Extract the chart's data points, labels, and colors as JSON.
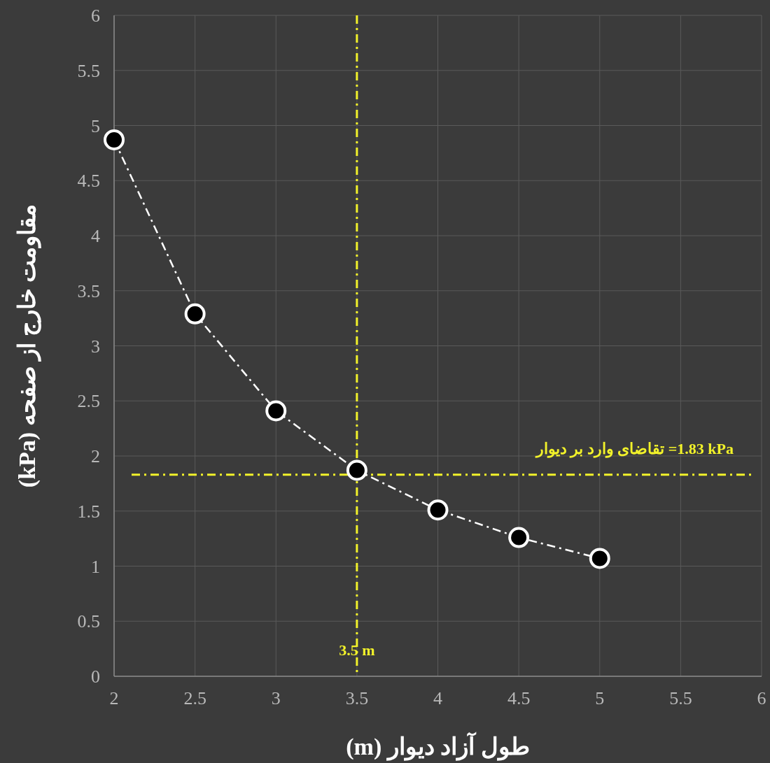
{
  "chart_data": {
    "type": "line",
    "xlabel": "طول آزاد دیوار (m)",
    "ylabel": "مقاومت خارج از صفحه (kPa)",
    "x": [
      2,
      2.5,
      3,
      3.5,
      4,
      4.5,
      5
    ],
    "series": [
      {
        "color": "#ffffff",
        "values": [
          4.87,
          3.29,
          2.41,
          1.87,
          1.51,
          1.26,
          1.07
        ]
      }
    ],
    "xlim": [
      2,
      6
    ],
    "xticks": [
      2,
      2.5,
      3,
      3.5,
      4,
      4.5,
      5,
      5.5,
      6
    ],
    "ylim": [
      0,
      6
    ],
    "yticks": [
      0,
      0.5,
      1,
      1.5,
      2,
      2.5,
      3,
      3.5,
      4,
      4.5,
      5,
      5.5,
      6
    ],
    "ref_lines": [
      {
        "axis": "y",
        "value": 1.83,
        "label": "تقاضای وارد بر دیوار =1.83 kPa",
        "color": "#f2f22a",
        "line_style": "dashed"
      },
      {
        "axis": "x",
        "value": 3.5,
        "label": "3.5 m",
        "color": "#f2f22a",
        "line_style": "dashed"
      }
    ],
    "grid": true,
    "marker": "circle",
    "line_style": "dashed"
  }
}
